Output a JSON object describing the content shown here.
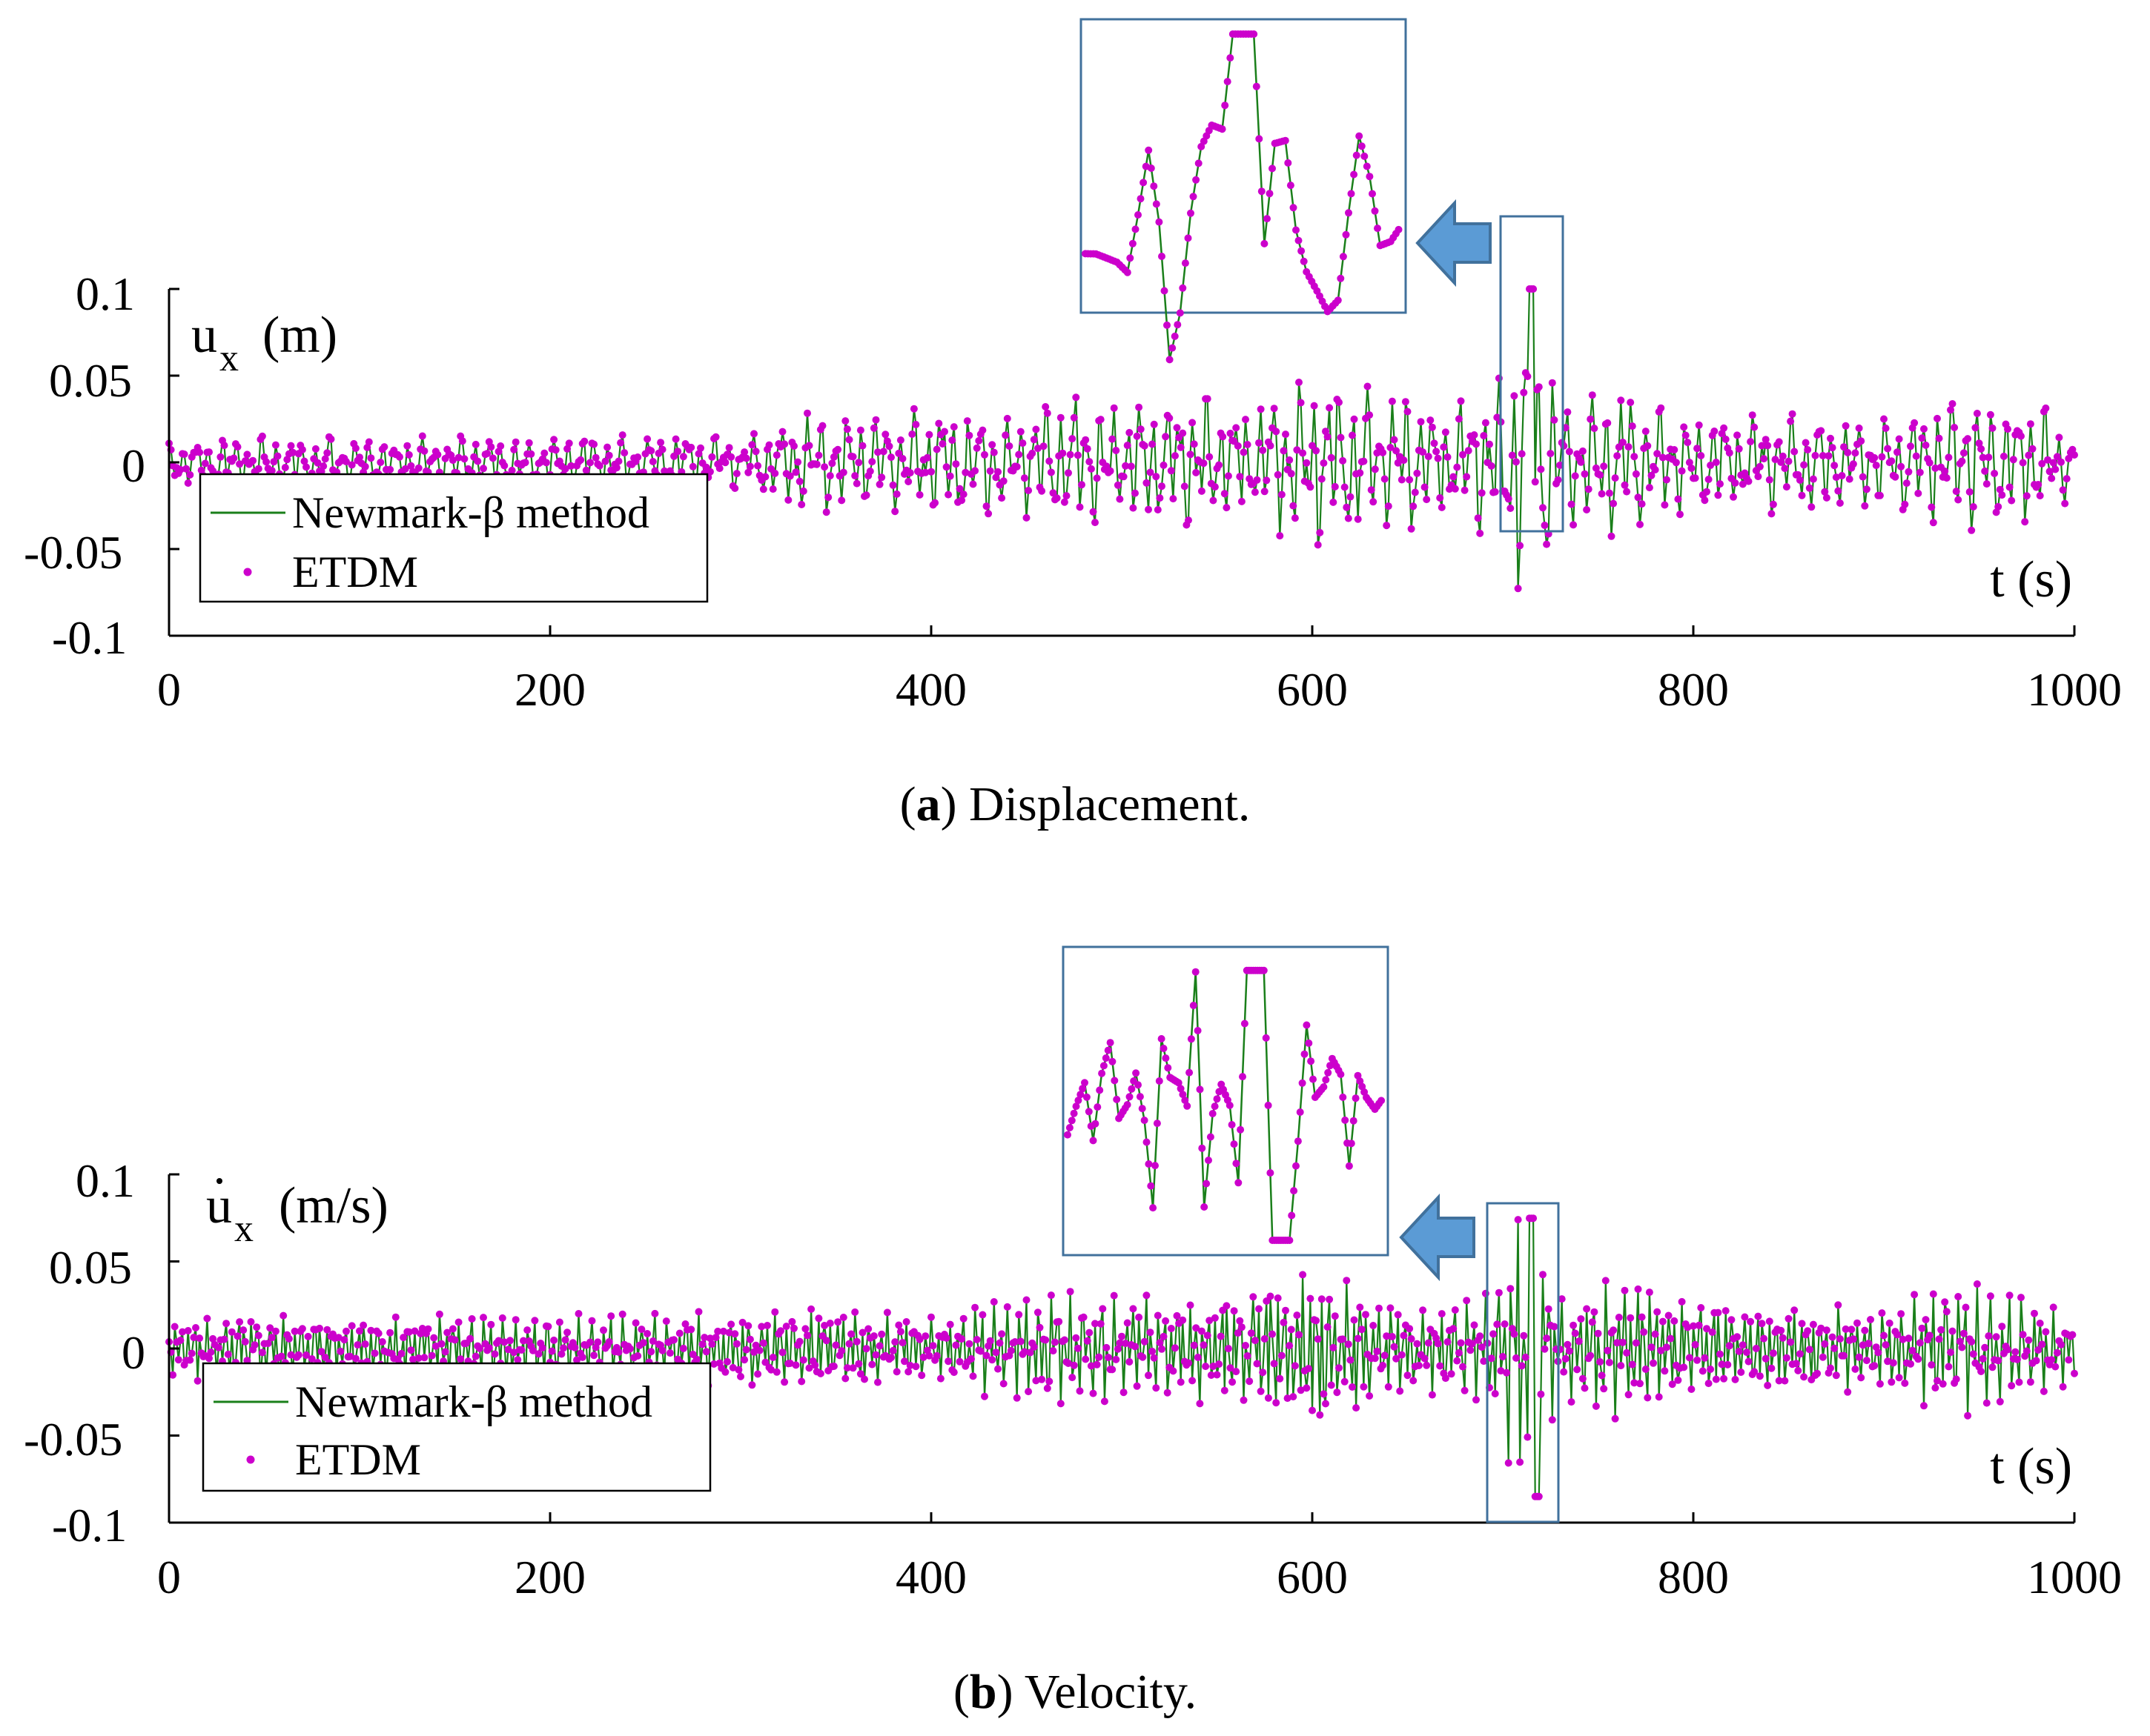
{
  "chart_data": [
    {
      "type": "line",
      "panel_label": "a",
      "caption_text": "Displacement.",
      "ylabel": "u",
      "ylabel_sub": "x",
      "ylabel_unit": "(m)",
      "xlabel": "t (s)",
      "xlim": [
        0,
        1000
      ],
      "ylim": [
        -0.1,
        0.1
      ],
      "xticks": [
        0,
        200,
        400,
        600,
        800,
        1000
      ],
      "xtick_labels": [
        "0",
        "200",
        "400",
        "600",
        "800",
        "1000"
      ],
      "yticks": [
        0.1,
        0.05,
        0,
        -0.05,
        -0.1
      ],
      "ytick_labels": [
        "0.1",
        "0.05",
        "0",
        "-0.05",
        "-0.1"
      ],
      "zoom_window": {
        "t_range": [
          700,
          730
        ],
        "y_range": [
          -0.04,
          0.1
        ]
      },
      "legend": [
        "Newmark-β method",
        "ETDM"
      ],
      "series": [
        {
          "name": "Newmark-β method",
          "style": "line",
          "color": "#1a7f1a"
        },
        {
          "name": "ETDM",
          "style": "markers",
          "color": "#cc00cc"
        }
      ],
      "envelope": {
        "t": [
          0,
          50,
          100,
          150,
          200,
          250,
          300,
          340,
          360,
          400,
          440,
          470,
          500,
          540,
          560,
          600,
          640,
          680,
          700,
          715,
          730,
          760,
          800,
          850,
          900,
          940,
          980,
          1000
        ],
        "amplitude": [
          0.012,
          0.016,
          0.014,
          0.016,
          0.015,
          0.016,
          0.015,
          0.032,
          0.025,
          0.035,
          0.028,
          0.04,
          0.03,
          0.04,
          0.032,
          0.05,
          0.042,
          0.035,
          0.05,
          0.1,
          0.035,
          0.045,
          0.028,
          0.03,
          0.025,
          0.04,
          0.035,
          0.02
        ]
      }
    },
    {
      "type": "line",
      "panel_label": "b",
      "caption_text": "Velocity.",
      "ylabel": "u",
      "ylabel_sub": "x",
      "ylabel_unit": "(m/s)",
      "xlabel": "t (s)",
      "xlim": [
        0,
        1000
      ],
      "ylim": [
        -0.1,
        0.1
      ],
      "xticks": [
        0,
        200,
        400,
        600,
        800,
        1000
      ],
      "xtick_labels": [
        "0",
        "200",
        "400",
        "600",
        "800",
        "1000"
      ],
      "yticks": [
        0.1,
        0.05,
        0,
        -0.05,
        -0.1
      ],
      "ytick_labels": [
        "0.1",
        "0.05",
        "0",
        "-0.05",
        "-0.1"
      ],
      "zoom_window": {
        "t_range": [
          693,
          730
        ],
        "y_range": [
          -0.085,
          0.08
        ]
      },
      "legend": [
        "Newmark-β method",
        "ETDM"
      ],
      "series": [
        {
          "name": "Newmark-β method",
          "style": "line",
          "color": "#1a7f1a"
        },
        {
          "name": "ETDM",
          "style": "markers",
          "color": "#cc00cc"
        }
      ],
      "envelope": {
        "t": [
          0,
          50,
          100,
          150,
          200,
          250,
          300,
          340,
          400,
          450,
          500,
          550,
          600,
          650,
          690,
          710,
          730,
          760,
          800,
          850,
          900,
          940,
          1000
        ],
        "amplitude": [
          0.018,
          0.02,
          0.018,
          0.02,
          0.02,
          0.02,
          0.022,
          0.025,
          0.018,
          0.035,
          0.03,
          0.032,
          0.05,
          0.025,
          0.03,
          0.085,
          0.03,
          0.045,
          0.03,
          0.025,
          0.025,
          0.04,
          0.02
        ]
      }
    }
  ],
  "colors": {
    "line": "#1a7f1a",
    "marker": "#cc00cc",
    "zoom_box": "#41719c",
    "arrow_fill": "#5b9bd5",
    "arrow_stroke": "#41719c"
  }
}
